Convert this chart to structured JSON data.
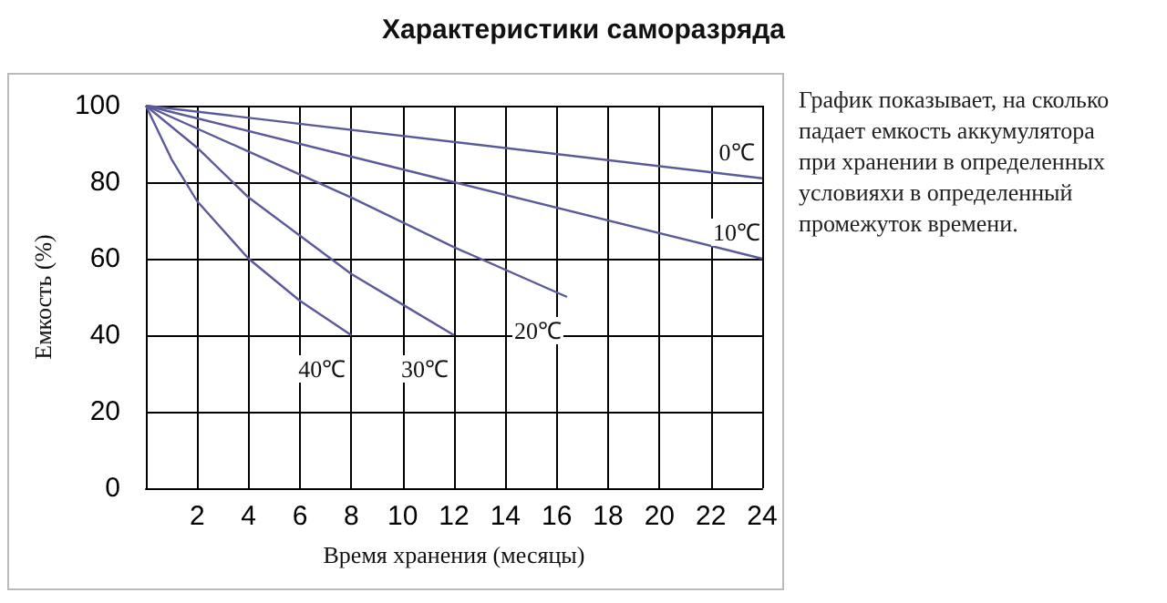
{
  "chart_data": {
    "type": "line",
    "title": "Характеристики саморазряда",
    "xlabel": "Время хранения (месяцы)",
    "ylabel": "Емкость (%)",
    "annotations": [
      "График показывает, на сколько падает емкость аккумулятора при хранении в определенных условияхи в определенный промежуток времени."
    ],
    "series": [
      {
        "name": "0℃",
        "color": "#5a5a9a",
        "x": [
          0,
          24
        ],
        "values": [
          100,
          81
        ]
      },
      {
        "name": "10℃",
        "color": "#5a5a9a",
        "x": [
          0,
          12,
          24
        ],
        "values": [
          100,
          80,
          60
        ]
      },
      {
        "name": "20℃",
        "color": "#5a5a9a",
        "x": [
          0,
          4,
          8,
          12,
          16.4
        ],
        "values": [
          100,
          88,
          76,
          63,
          50
        ]
      },
      {
        "name": "30℃",
        "color": "#5a5a9a",
        "x": [
          0,
          2,
          4,
          6,
          8,
          10,
          12
        ],
        "values": [
          100,
          89,
          76,
          66,
          56,
          48,
          40
        ]
      },
      {
        "name": "40℃",
        "color": "#5a5a9a",
        "x": [
          0,
          1,
          2,
          4,
          6,
          8
        ],
        "values": [
          100,
          86,
          75,
          60,
          49,
          40
        ]
      }
    ],
    "xlim": [
      0,
      24
    ],
    "xticks": [
      2,
      4,
      6,
      8,
      10,
      12,
      14,
      16,
      18,
      20,
      22,
      24
    ],
    "ylim": [
      0,
      100
    ],
    "yticks": [
      0,
      20,
      40,
      60,
      80,
      100
    ],
    "grid": true,
    "legend": false,
    "marker": "none",
    "line_style": "solid"
  }
}
